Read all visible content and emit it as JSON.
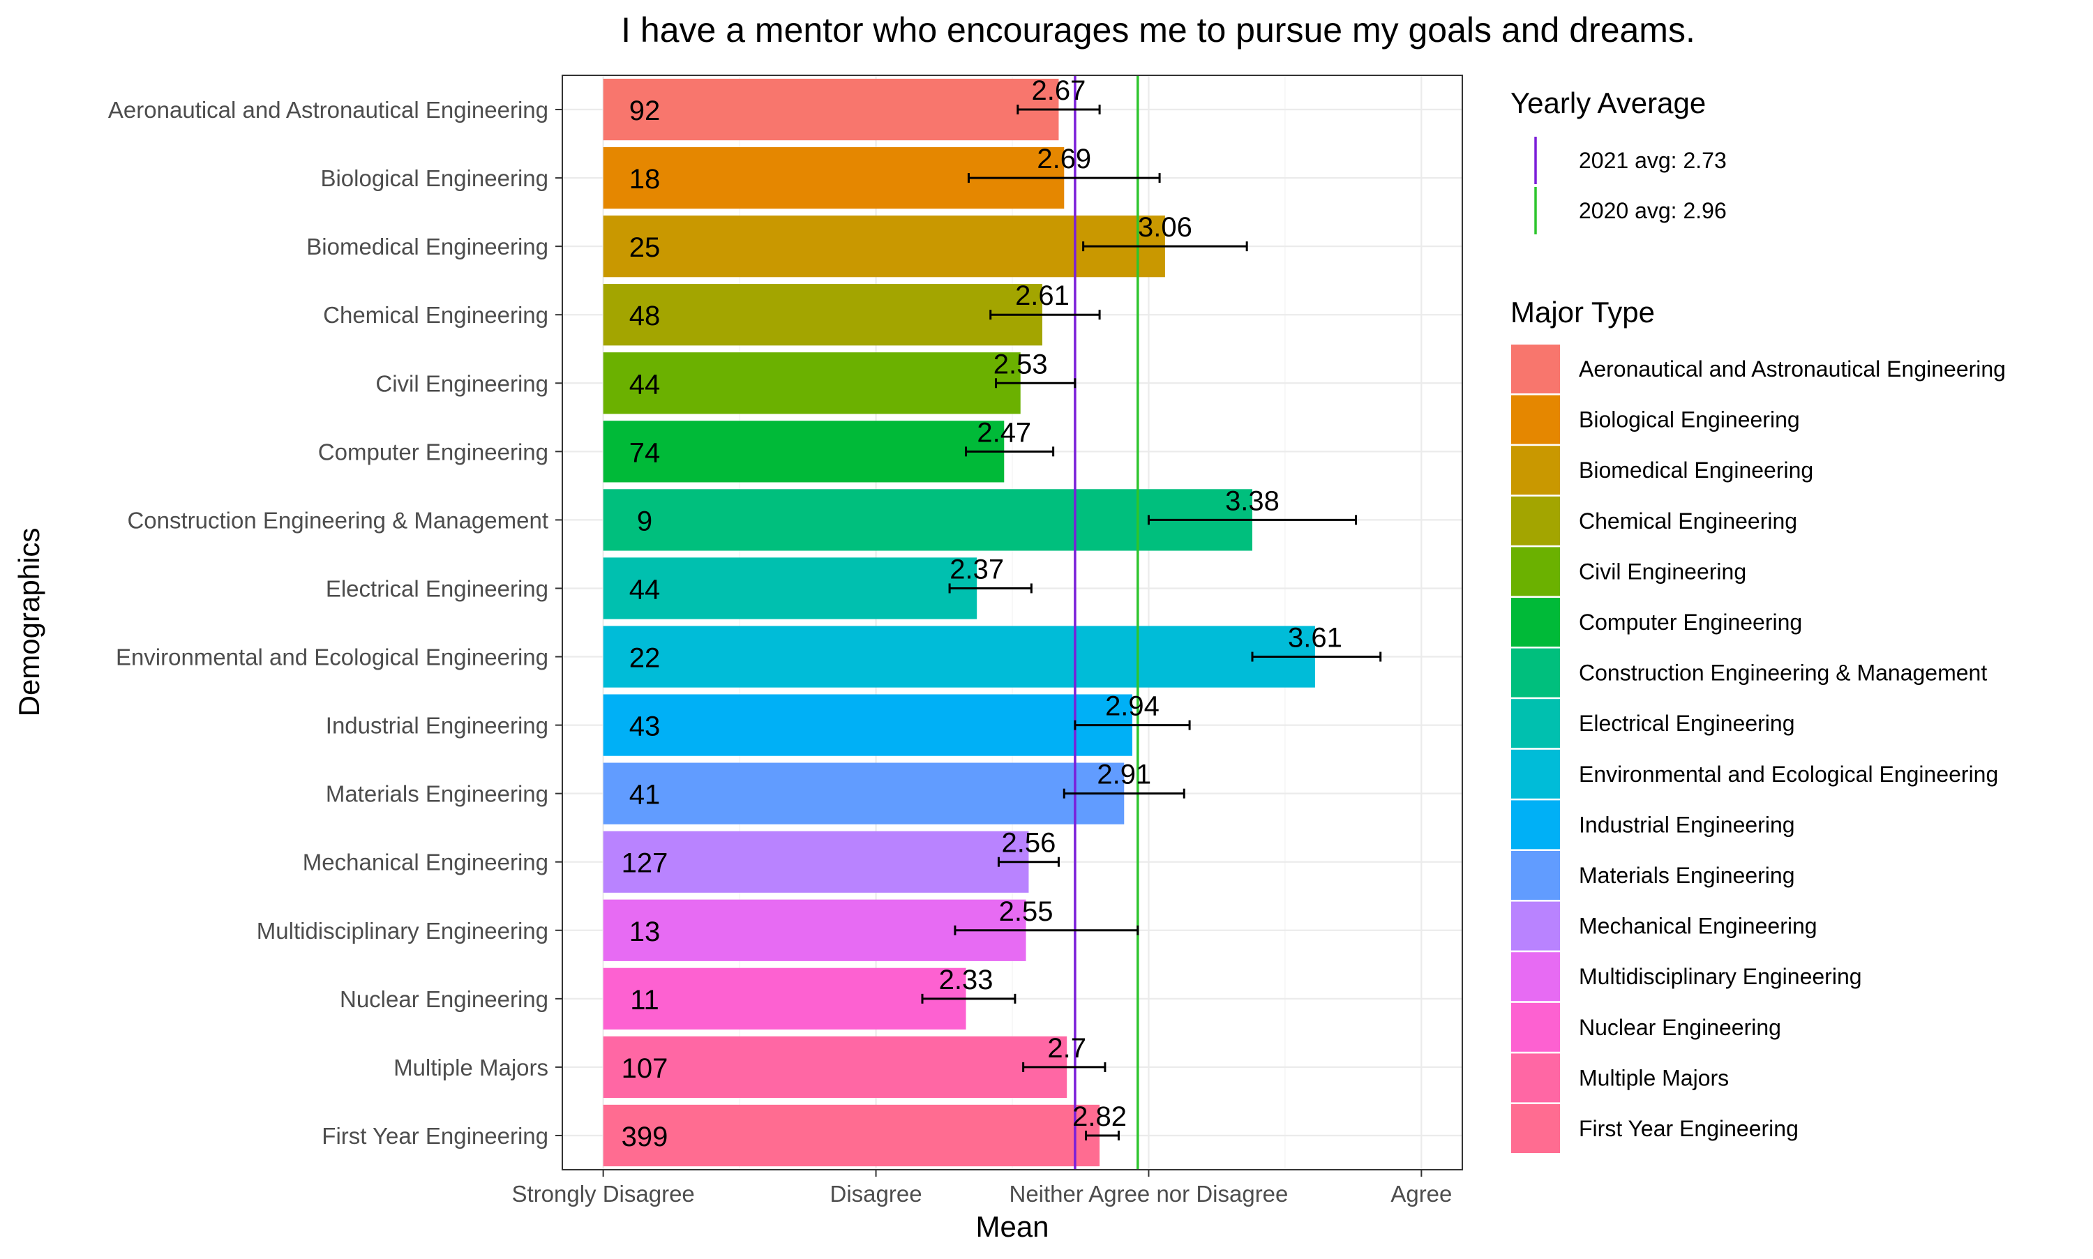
{
  "chart_data": {
    "type": "bar",
    "orientation": "horizontal",
    "title": "I have a mentor who encourages me to pursue my goals and dreams.",
    "xlabel": "Mean",
    "ylabel": "Demographics",
    "xlim": [
      0.85,
      4.15
    ],
    "x_ticks": [
      {
        "value": 1,
        "label": "Strongly Disagree"
      },
      {
        "value": 2,
        "label": "Disagree"
      },
      {
        "value": 3,
        "label": "Neither Agree nor Disagree"
      },
      {
        "value": 4,
        "label": "Agree"
      }
    ],
    "grid": true,
    "categories": [
      "Aeronautical and Astronautical Engineering",
      "Biological Engineering",
      "Biomedical Engineering",
      "Chemical Engineering",
      "Civil Engineering",
      "Computer Engineering",
      "Construction Engineering & Management",
      "Electrical Engineering",
      "Environmental and Ecological Engineering",
      "Industrial Engineering",
      "Materials Engineering",
      "Mechanical Engineering",
      "Multidisciplinary Engineering",
      "Nuclear Engineering",
      "Multiple Majors",
      "First Year Engineering"
    ],
    "values": [
      2.67,
      2.69,
      3.06,
      2.61,
      2.53,
      2.47,
      3.38,
      2.37,
      3.61,
      2.94,
      2.91,
      2.56,
      2.55,
      2.33,
      2.7,
      2.82
    ],
    "value_labels": [
      "2.67",
      "2.69",
      "3.06",
      "2.61",
      "2.53",
      "2.47",
      "3.38",
      "2.37",
      "3.61",
      "2.94",
      "2.91",
      "2.56",
      "2.55",
      "2.33",
      "2.7",
      "2.82"
    ],
    "counts": [
      92,
      18,
      25,
      48,
      44,
      74,
      9,
      44,
      22,
      43,
      41,
      127,
      13,
      11,
      107,
      399
    ],
    "error_low": [
      2.52,
      2.34,
      2.76,
      2.42,
      2.44,
      2.33,
      3.0,
      2.27,
      3.38,
      2.73,
      2.69,
      2.45,
      2.29,
      2.17,
      2.54,
      2.77
    ],
    "error_high": [
      2.82,
      3.04,
      3.36,
      2.82,
      2.73,
      2.65,
      3.76,
      2.57,
      3.85,
      3.15,
      3.13,
      2.67,
      2.96,
      2.51,
      2.84,
      2.89
    ],
    "colors": [
      "#F8766D",
      "#E58700",
      "#C99800",
      "#A3A500",
      "#6BB100",
      "#00BA38",
      "#00BF7D",
      "#00C0AF",
      "#00BCD8",
      "#00B0F6",
      "#619CFF",
      "#B983FF",
      "#E76BF3",
      "#FD61D1",
      "#FF67A4",
      "#FF6C91"
    ],
    "reference_lines": [
      {
        "label": "2021 avg: 2.73",
        "value": 2.73,
        "color": "#7B1FD9"
      },
      {
        "label": "2020 avg: 2.96",
        "value": 2.96,
        "color": "#2DC52D"
      }
    ],
    "legends": {
      "reference_title": "Yearly Average",
      "fill_title": "Major Type",
      "placement": "right"
    }
  }
}
